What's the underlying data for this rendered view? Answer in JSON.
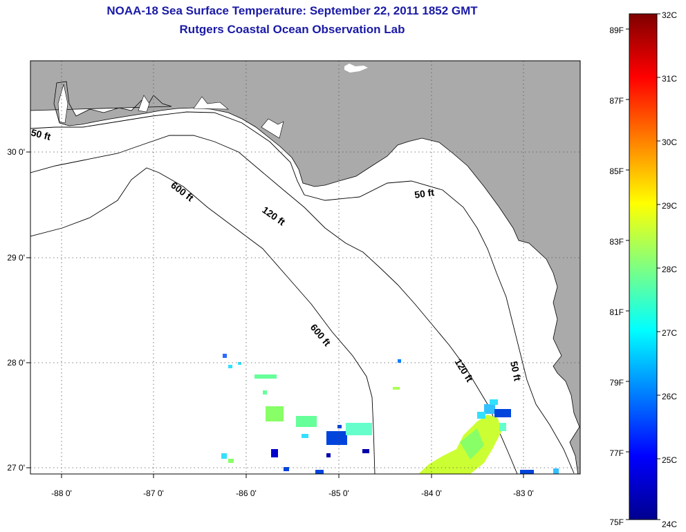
{
  "header": {
    "title": "NOAA-18 Sea Surface Temperature:  September 22, 2011 1852 GMT",
    "subtitle": "Rutgers Coastal Ocean Observation Lab"
  },
  "map": {
    "lon_ticks": [
      "-88 0'",
      "-87 0'",
      "-86 0'",
      "-85 0'",
      "-84 0'",
      "-83 0'"
    ],
    "lat_ticks": [
      "30 0'",
      "29 0'",
      "28 0'",
      "27 0'"
    ],
    "contour_labels": [
      "50 ft",
      "50 ft",
      "50 ft",
      "120 ft",
      "120 ft",
      "600 ft",
      "600 ft"
    ],
    "colors": {
      "land": "#aaaaaa",
      "water": "#ffffff",
      "contour": "#000000",
      "title": "#1a1aa6"
    }
  },
  "colorbar": {
    "celsius": [
      "32C",
      "31C",
      "30C",
      "29C",
      "28C",
      "27C",
      "26C",
      "25C",
      "24C"
    ],
    "fahrenheit": [
      "89F",
      "87F",
      "85F",
      "83F",
      "81F",
      "79F",
      "77F",
      "75F"
    ],
    "stops": [
      "#7f0000",
      "#ff0000",
      "#ff8000",
      "#ffff00",
      "#80ff80",
      "#00ffff",
      "#0080ff",
      "#0000ff",
      "#00008f"
    ]
  }
}
